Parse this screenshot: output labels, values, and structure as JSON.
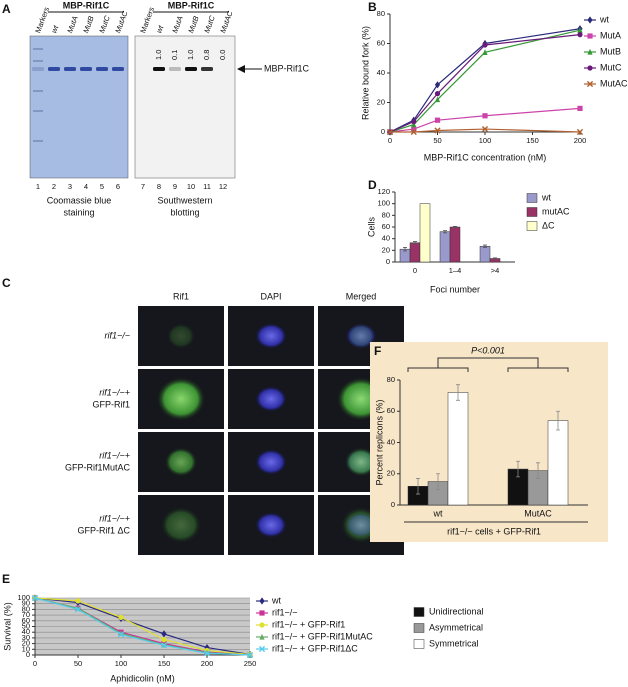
{
  "gel": {
    "panel": "A",
    "band_label": "MBP-Rif1C",
    "left": {
      "title": "MBP-Rif1C",
      "lanes": [
        "Markers",
        "wt",
        "MutA",
        "MutB",
        "MutC",
        "MutAC"
      ],
      "numbers": [
        "1",
        "2",
        "3",
        "4",
        "5",
        "6"
      ],
      "caption": [
        "Coomassie blue",
        "staining"
      ]
    },
    "right": {
      "title": "MBP-Rif1C",
      "lanes": [
        "Markers",
        "wt",
        "MutA",
        "MutB",
        "MutC",
        "MutAC"
      ],
      "numbers": [
        "7",
        "8",
        "9",
        "10",
        "11",
        "12"
      ],
      "caption": [
        "Southwestern",
        "blotting"
      ],
      "quant": [
        "1.0",
        "0.1",
        "1.0",
        "0.8",
        "0.0"
      ]
    }
  },
  "cells": {
    "panel": "C",
    "columns": [
      "Rif1",
      "DAPI",
      "Merged"
    ],
    "rows": [
      [
        "rif1−/−"
      ],
      [
        "rif1−/−+",
        "GFP-Rif1"
      ],
      [
        "rif1−/−+",
        "GFP-Rif1MutAC"
      ],
      [
        "rif1−/−+",
        "GFP-Rif1 ΔC"
      ]
    ]
  },
  "chart_data": [
    {
      "type": "line",
      "panel": "B",
      "x": [
        0,
        25,
        50,
        100,
        200
      ],
      "xlim": [
        0,
        200
      ],
      "xticks": [
        0,
        50,
        100,
        150,
        200
      ],
      "ylim": [
        0,
        80
      ],
      "yticks": [
        0,
        20,
        40,
        60,
        80
      ],
      "xlabel": "MBP-Rif1C concentration (nM)",
      "ylabel": "Relative bound fork (%)",
      "legend": "right",
      "series": [
        {
          "name": "wt",
          "color": "#2a2a7a",
          "marker": "diamond",
          "values": [
            0,
            8,
            32,
            60,
            70
          ]
        },
        {
          "name": "MutA",
          "color": "#cc44aa",
          "marker": "square",
          "values": [
            0,
            2,
            8,
            11,
            16
          ]
        },
        {
          "name": "MutB",
          "color": "#339933",
          "marker": "triangle",
          "values": [
            0,
            5,
            22,
            54,
            69
          ]
        },
        {
          "name": "MutC",
          "color": "#6a1b7a",
          "marker": "circle",
          "values": [
            0,
            7,
            26,
            59,
            66
          ]
        },
        {
          "name": "MutAC",
          "color": "#b06030",
          "marker": "x",
          "values": [
            0,
            0,
            1,
            2,
            0
          ]
        }
      ]
    },
    {
      "type": "bar",
      "panel": "D",
      "categories": [
        "0",
        "1–4",
        ">4"
      ],
      "ylim": [
        0,
        120
      ],
      "yticks": [
        0,
        20,
        40,
        60,
        80,
        100,
        120
      ],
      "xlabel": "Foci number",
      "ylabel": "Cells",
      "legend": "right",
      "series": [
        {
          "name": "wt",
          "color": "#9999cc",
          "values": [
            22,
            52,
            27
          ],
          "errors": [
            3,
            2,
            2
          ]
        },
        {
          "name": "mutAC",
          "color": "#993366",
          "values": [
            33,
            60,
            6
          ],
          "errors": [
            2,
            1,
            1
          ]
        },
        {
          "name": "ΔC",
          "color": "#ffffcc",
          "values": [
            100,
            0,
            0
          ]
        }
      ]
    },
    {
      "type": "line",
      "panel": "E",
      "x": [
        0,
        50,
        100,
        150,
        200,
        250
      ],
      "xlim": [
        0,
        250
      ],
      "xticks": [
        0,
        50,
        100,
        150,
        200,
        250
      ],
      "ylim": [
        0,
        100
      ],
      "yticks": [
        0,
        10,
        20,
        30,
        40,
        50,
        60,
        70,
        80,
        90,
        100
      ],
      "grid": true,
      "background": "#c8c8c8",
      "xlabel": "Aphidicolin (nM)",
      "ylabel": "Survival (%)",
      "legend": "right",
      "series": [
        {
          "name": "wt",
          "color": "#2a2a80",
          "marker": "diamond",
          "values": [
            100,
            92,
            64,
            37,
            13,
            1
          ]
        },
        {
          "name": "rif1−/−",
          "color": "#cc3399",
          "marker": "square",
          "values": [
            100,
            82,
            40,
            20,
            5,
            0
          ]
        },
        {
          "name": "rif1−/− + GFP-Rif1",
          "color": "#e0e030",
          "marker": "circle",
          "values": [
            100,
            95,
            66,
            27,
            8,
            1
          ]
        },
        {
          "name": "rif1−/− + GFP-Rif1MutAC",
          "color": "#66aa66",
          "marker": "triangle",
          "values": [
            100,
            82,
            38,
            18,
            4,
            0
          ]
        },
        {
          "name": "rif1−/− + GFP-Rif1ΔC",
          "color": "#55ccee",
          "marker": "x",
          "values": [
            100,
            80,
            36,
            17,
            3,
            0
          ]
        }
      ]
    },
    {
      "type": "bar",
      "panel": "F",
      "categories": [
        "wt",
        "MutAC"
      ],
      "ylim": [
        0,
        80
      ],
      "yticks": [
        0,
        20,
        40,
        60,
        80
      ],
      "ylabel": "Percent replicons (%)",
      "xlabel": "rif1−/− cells + GFP-Rif1",
      "annotation": "P<0.001",
      "background": "#f7e6c8",
      "legend": "bottom",
      "series": [
        {
          "name": "Unidirectional",
          "color": "#111111",
          "values": [
            12,
            23
          ],
          "errors": [
            5,
            5
          ]
        },
        {
          "name": "Asymmetrical",
          "color": "#999999",
          "values": [
            15,
            22
          ],
          "errors": [
            5,
            5
          ]
        },
        {
          "name": "Symmetrical",
          "color": "#ffffff",
          "values": [
            72,
            54
          ],
          "errors": [
            5,
            6
          ]
        }
      ]
    }
  ]
}
